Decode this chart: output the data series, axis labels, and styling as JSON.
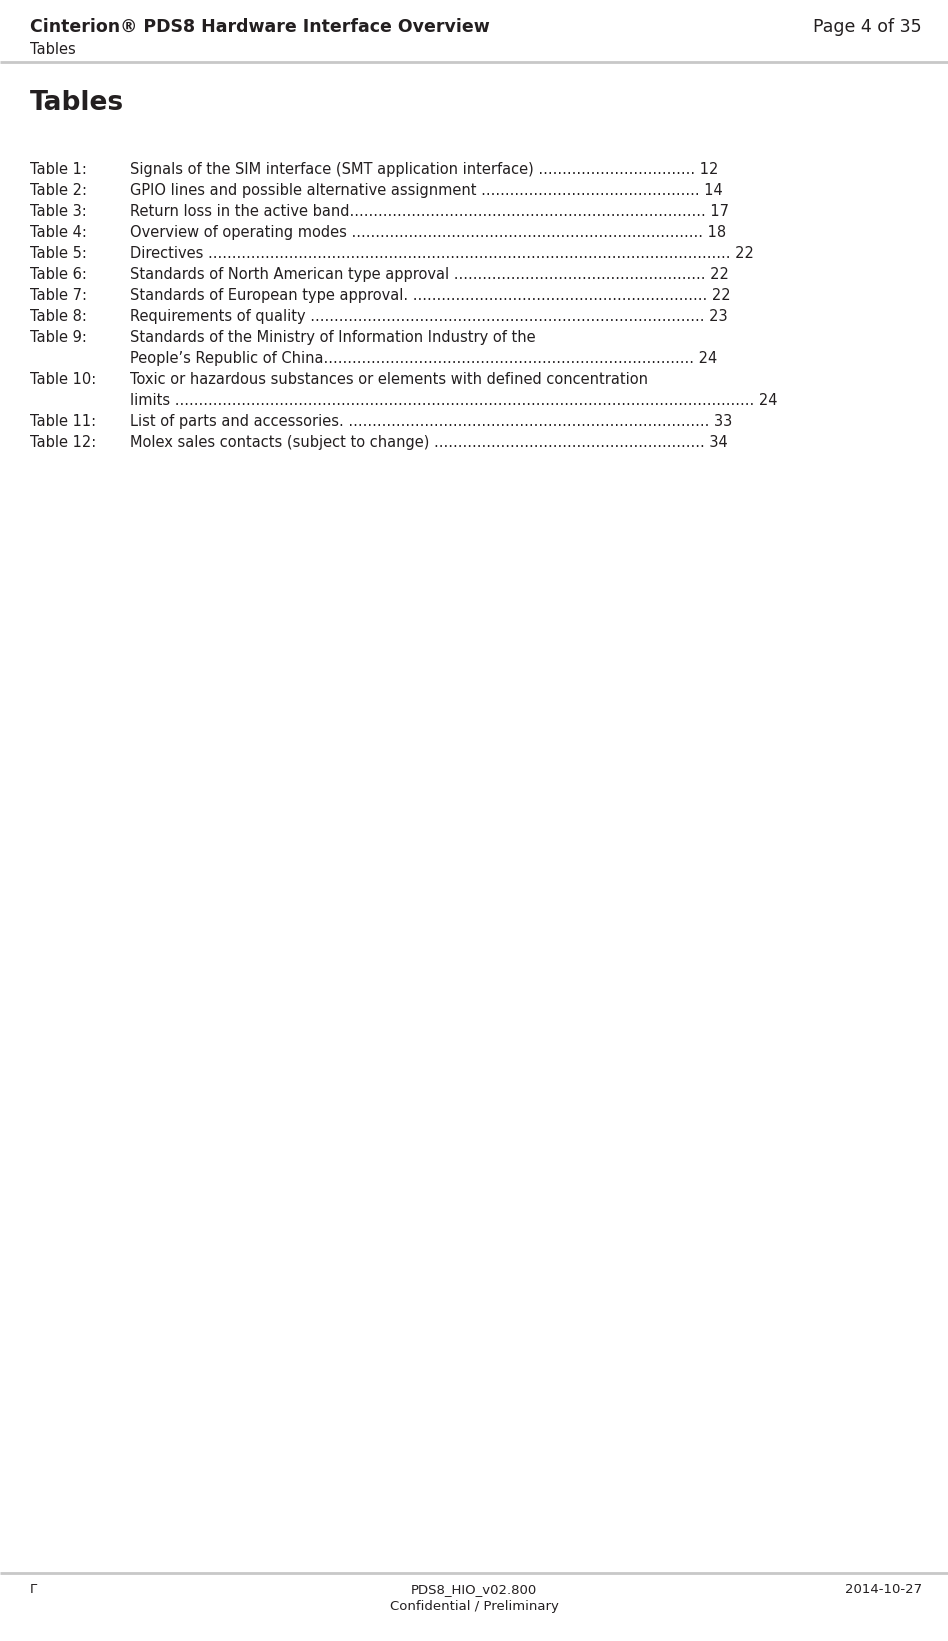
{
  "header_left": "Cinterion® PDS8 Hardware Interface Overview",
  "header_right": "Page 4 of 35",
  "header_sub": "Tables",
  "section_title": "Tables",
  "footer_left": "Γ",
  "footer_center_line1": "PDS8_HIO_v02.800",
  "footer_center_line2": "Confidential / Preliminary",
  "footer_right": "2014-10-27",
  "bg_color": "#ffffff",
  "header_line_color": "#c8c8c8",
  "footer_line_color": "#c8c8c8",
  "text_color": "#231f20",
  "header_font_size": 12.5,
  "header_sub_font_size": 10.5,
  "section_title_font_size": 19.0,
  "body_font_size": 10.5,
  "footer_font_size": 9.5,
  "entries": [
    {
      "label": "Table 1:",
      "text_line1": "Signals of the SIM interface (SMT application interface) ................................. 12",
      "text_line2": null
    },
    {
      "label": "Table 2:",
      "text_line1": "GPIO lines and possible alternative assignment .............................................. 14",
      "text_line2": null
    },
    {
      "label": "Table 3:",
      "text_line1": "Return loss in the active band........................................................................... 17",
      "text_line2": null
    },
    {
      "label": "Table 4:",
      "text_line1": "Overview of operating modes .......................................................................... 18",
      "text_line2": null
    },
    {
      "label": "Table 5:",
      "text_line1": "Directives .............................................................................................................. 22",
      "text_line2": null
    },
    {
      "label": "Table 6:",
      "text_line1": "Standards of North American type approval ..................................................... 22",
      "text_line2": null
    },
    {
      "label": "Table 7:",
      "text_line1": "Standards of European type approval. .............................................................. 22",
      "text_line2": null
    },
    {
      "label": "Table 8:",
      "text_line1": "Requirements of quality ................................................................................... 23",
      "text_line2": null
    },
    {
      "label": "Table 9:",
      "text_line1": "Standards of the Ministry of Information Industry of the",
      "text_line2": "People’s Republic of China.............................................................................. 24"
    },
    {
      "label": "Table 10:",
      "text_line1": "Toxic or hazardous substances or elements with defined concentration",
      "text_line2": "limits .......................................................................................................................... 24"
    },
    {
      "label": "Table 11:",
      "text_line1": "List of parts and accessories. ............................................................................ 33",
      "text_line2": null
    },
    {
      "label": "Table 12:",
      "text_line1": "Molex sales contacts (subject to change) ......................................................... 34",
      "text_line2": null
    }
  ]
}
